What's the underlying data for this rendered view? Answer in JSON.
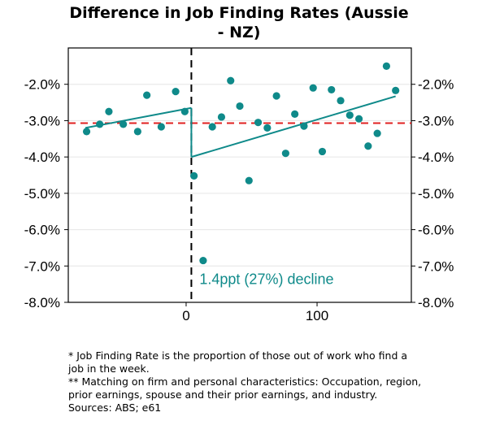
{
  "chart_data": {
    "type": "scatter",
    "title_lines": [
      "Difference in Job Finding Rates (Aussie",
      "- NZ)"
    ],
    "xlabel": "",
    "ylabel": "",
    "xlim": [
      -90,
      172
    ],
    "ylim": [
      -8.0,
      -1.0
    ],
    "x_ticks": [
      0,
      100
    ],
    "x_tick_labels": [
      "0",
      "100"
    ],
    "y_ticks": [
      -2.0,
      -3.0,
      -4.0,
      -5.0,
      -6.0,
      -7.0,
      -8.0
    ],
    "y_tick_labels": [
      "-2.0%",
      "-3.0%",
      "-4.0%",
      "-5.0%",
      "-6.0%",
      "-7.0%",
      "-8.0%"
    ],
    "right_axis_mirrored": true,
    "grid": "horizontal",
    "colors": {
      "points": "#0f8a8a",
      "trend": "#0f8a8a",
      "mean_line": "#e02020",
      "event_line": "#000000"
    },
    "points": [
      {
        "x": -76,
        "y": -3.3
      },
      {
        "x": -66,
        "y": -3.1
      },
      {
        "x": -59,
        "y": -2.75
      },
      {
        "x": -48,
        "y": -3.1
      },
      {
        "x": -37,
        "y": -3.3
      },
      {
        "x": -30,
        "y": -2.3
      },
      {
        "x": -19,
        "y": -3.17
      },
      {
        "x": -8,
        "y": -2.2
      },
      {
        "x": -1,
        "y": -2.75
      },
      {
        "x": 6,
        "y": -4.52
      },
      {
        "x": 13,
        "y": -6.85
      },
      {
        "x": 20,
        "y": -3.17
      },
      {
        "x": 27,
        "y": -2.9
      },
      {
        "x": 34,
        "y": -1.9
      },
      {
        "x": 41,
        "y": -2.6
      },
      {
        "x": 48,
        "y": -4.65
      },
      {
        "x": 55,
        "y": -3.05
      },
      {
        "x": 62,
        "y": -3.2
      },
      {
        "x": 69,
        "y": -2.32
      },
      {
        "x": 76,
        "y": -3.9
      },
      {
        "x": 83,
        "y": -2.82
      },
      {
        "x": 90,
        "y": -3.15
      },
      {
        "x": 97,
        "y": -2.1
      },
      {
        "x": 104,
        "y": -3.85
      },
      {
        "x": 111,
        "y": -2.15
      },
      {
        "x": 118,
        "y": -2.45
      },
      {
        "x": 125,
        "y": -2.85
      },
      {
        "x": 132,
        "y": -2.95
      },
      {
        "x": 139,
        "y": -3.7
      },
      {
        "x": 146,
        "y": -3.35
      },
      {
        "x": 153,
        "y": -1.5
      },
      {
        "x": 160,
        "y": -2.17
      }
    ],
    "trend_pre": {
      "x": [
        -77,
        4
      ],
      "y": [
        -3.2,
        -2.65
      ]
    },
    "trend_post": {
      "x": [
        4,
        160
      ],
      "y": [
        -4.0,
        -2.33
      ]
    },
    "mean_line_y": -3.07,
    "event_x": 4,
    "annotation": "1.4ppt (27%) decline"
  },
  "notes": [
    "* Job Finding Rate is the proportion of those out of work who find a job in the week.",
    "** Matching on firm and personal characteristics: Occupation, region, prior earnings, spouse and their prior earnings, and industry.",
    "Sources: ABS; e61"
  ]
}
